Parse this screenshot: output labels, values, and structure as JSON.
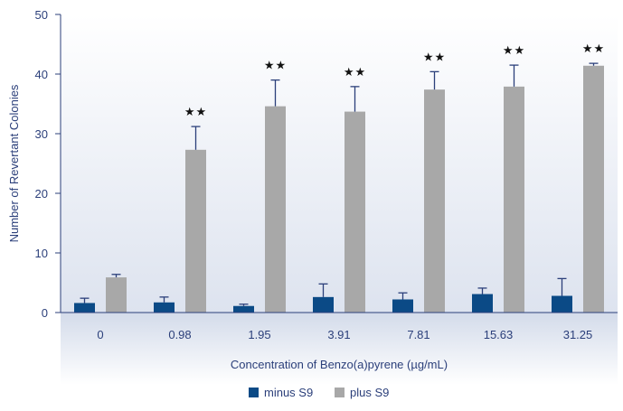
{
  "chart_data": {
    "type": "bar",
    "title": "",
    "xlabel": "Concentration of Benzo(a)pyrene (µg/mL)",
    "ylabel": "Number of Revertant Colonies",
    "ylim": [
      0,
      50
    ],
    "yticks": [
      "0",
      "10",
      "20",
      "30",
      "40",
      "50"
    ],
    "categories": [
      "0",
      "0.98",
      "1.95",
      "3.91",
      "7.81",
      "15.63",
      "31.25"
    ],
    "series": [
      {
        "name": "minus S9",
        "color": "#0b4a86",
        "values": [
          1.6,
          1.7,
          1.1,
          2.6,
          2.2,
          3.1,
          2.8
        ],
        "errors": [
          0.8,
          0.9,
          0.3,
          2.2,
          1.1,
          1.0,
          2.9
        ]
      },
      {
        "name": "plus S9",
        "color": "#a8a8a8",
        "values": [
          5.9,
          27.3,
          34.6,
          33.7,
          37.4,
          37.9,
          41.4
        ],
        "errors": [
          0.5,
          3.9,
          4.4,
          4.2,
          3.0,
          3.6,
          0.4
        ]
      }
    ],
    "annotations": [
      "",
      "★★",
      "★★",
      "★★",
      "★★",
      "★★",
      "★★"
    ],
    "errorbar_color": "#2b3f7a",
    "axis_color": "#2b3f7a",
    "legend": "bottom-center"
  }
}
